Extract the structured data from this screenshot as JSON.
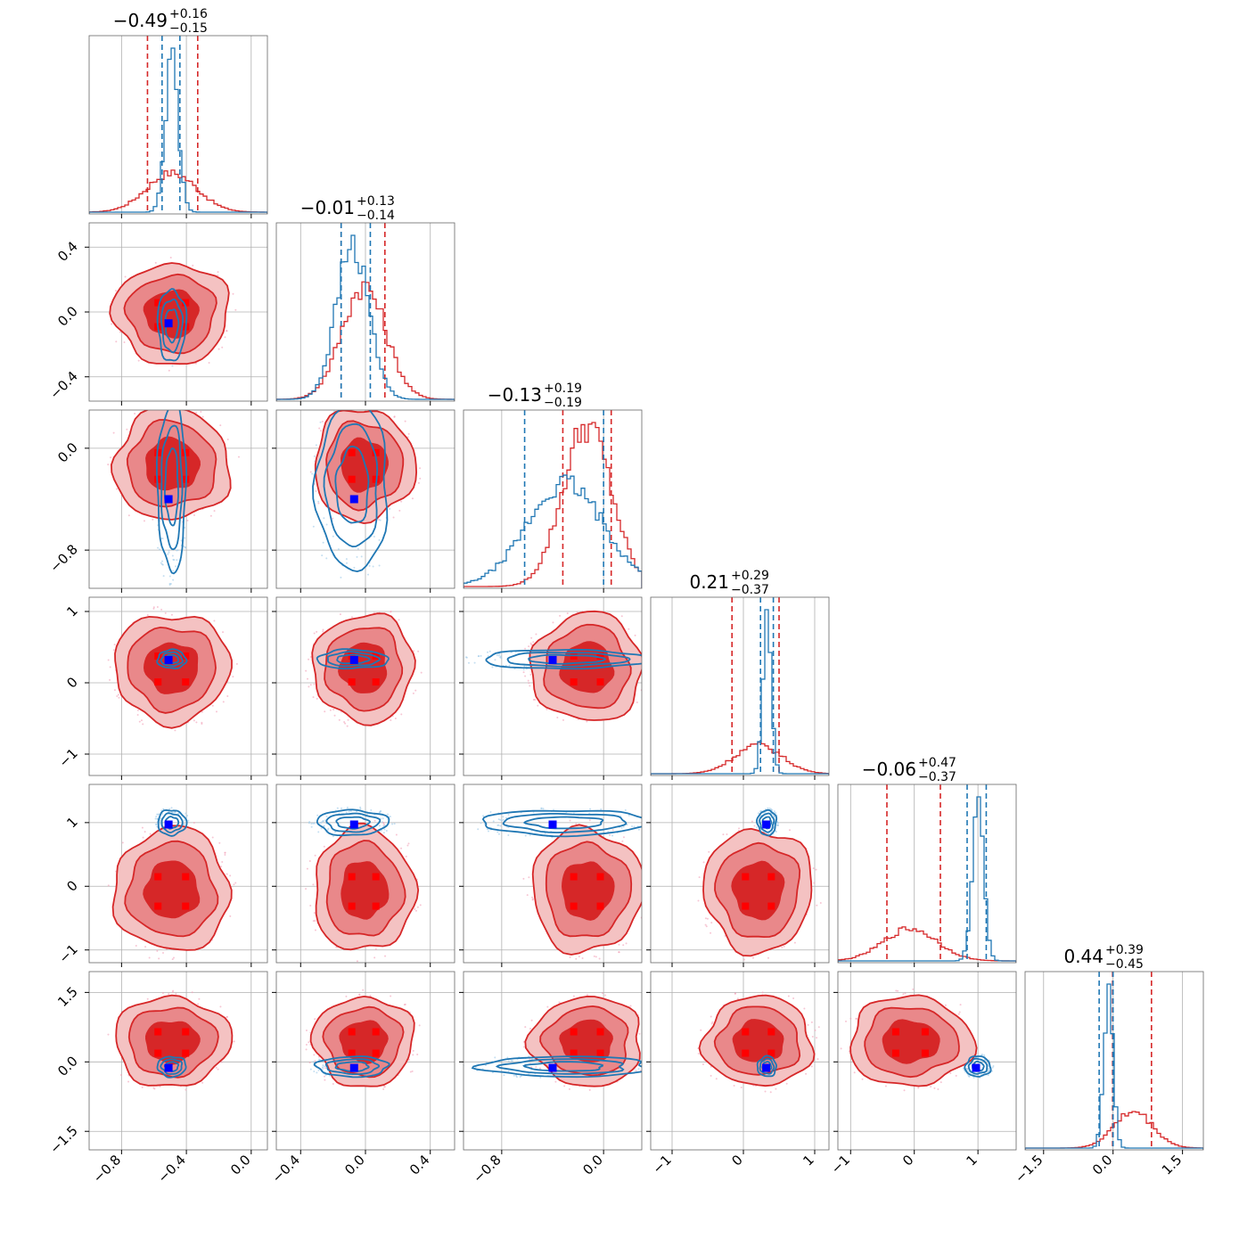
{
  "chart_data": {
    "type": "corner",
    "n_params": 6,
    "colors": {
      "red": "#d62728",
      "red_fill_outer": "#f4c2c2",
      "red_fill_mid": "#e9888a",
      "blue": "#1f77b4",
      "marker_red": "#ff0000",
      "marker_blue": "#0000ff",
      "grid": "#b0b0b0"
    },
    "titles": [
      {
        "value": "−0.49",
        "plus": "+0.16",
        "minus": "−0.15"
      },
      {
        "value": "−0.01",
        "plus": "+0.13",
        "minus": "−0.14"
      },
      {
        "value": "−0.13",
        "plus": "+0.19",
        "minus": "−0.19"
      },
      {
        "value": "0.21",
        "plus": "+0.29",
        "minus": "−0.37"
      },
      {
        "value": "−0.06",
        "plus": "+0.47",
        "minus": "−0.37"
      },
      {
        "value": "0.44",
        "plus": "+0.39",
        "minus": "−0.45"
      }
    ],
    "axes": [
      {
        "range": [
          -1.0,
          0.1
        ],
        "ticks": [
          -0.8,
          -0.4,
          0.0
        ],
        "tick_labels": [
          "−0.8",
          "−0.4",
          "0.0"
        ]
      },
      {
        "range": [
          -0.55,
          0.55
        ],
        "ticks": [
          -0.4,
          0.0,
          0.4
        ],
        "tick_labels": [
          "−0.4",
          "0.0",
          "0.4"
        ]
      },
      {
        "range": [
          -1.1,
          0.3
        ],
        "ticks": [
          -0.8,
          0.0
        ],
        "tick_labels": [
          "−0.8",
          "0.0"
        ]
      },
      {
        "range": [
          -1.3,
          1.2
        ],
        "ticks": [
          -1,
          0,
          1
        ],
        "tick_labels": [
          "−1",
          "0",
          "1"
        ]
      },
      {
        "range": [
          -1.2,
          1.6
        ],
        "ticks": [
          -1,
          0,
          1
        ],
        "tick_labels": [
          "−1",
          "0",
          "1"
        ]
      },
      {
        "range": [
          -1.9,
          1.95
        ],
        "ticks": [
          -1.5,
          0.0,
          1.5
        ],
        "tick_labels": [
          "−1.5",
          "0.0",
          "1.5"
        ]
      }
    ],
    "series": [
      {
        "color": "red",
        "centers": [
          -0.49,
          -0.01,
          -0.13,
          0.21,
          -0.06,
          0.44
        ],
        "sigmas": [
          0.155,
          0.135,
          0.19,
          0.33,
          0.42,
          0.42
        ],
        "quantiles": [
          [
            -0.64,
            -0.33
          ],
          [
            -0.15,
            0.12
          ],
          [
            -0.32,
            0.06
          ],
          [
            -0.16,
            0.5
          ],
          [
            -0.43,
            0.41
          ],
          [
            -0.01,
            0.83
          ]
        ],
        "markers": [
          -0.52,
          0.05,
          -0.02,
          0.0,
          0.1,
          0.55
        ]
      },
      {
        "color": "blue",
        "centers": [
          -0.49,
          -0.08,
          -0.3,
          0.33,
          1.0,
          -0.1
        ],
        "sigmas": [
          0.04,
          0.1,
          0.3,
          0.06,
          0.09,
          0.1
        ],
        "quantiles": [
          [
            -0.55,
            -0.44
          ],
          [
            -0.15,
            0.03
          ],
          [
            -0.62,
            0.0
          ],
          [
            0.24,
            0.42
          ],
          [
            0.83,
            1.13
          ],
          [
            -0.3,
            0.0
          ]
        ],
        "truth": [
          -0.51,
          -0.07,
          -0.4,
          0.32,
          0.97,
          -0.13
        ]
      }
    ]
  }
}
